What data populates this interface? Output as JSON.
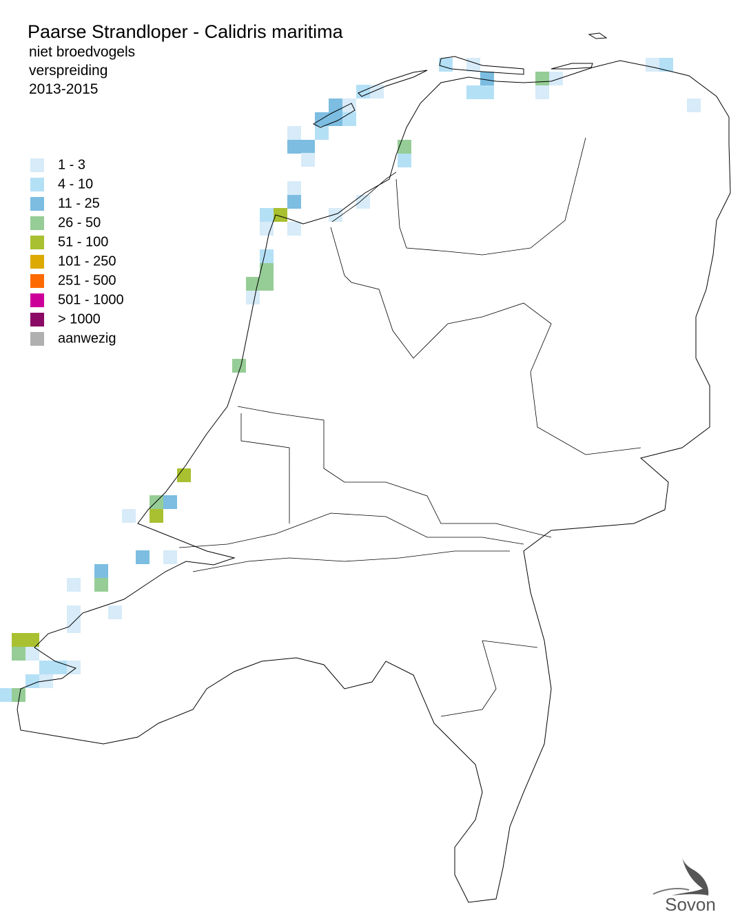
{
  "header": {
    "title": "Paarse Strandloper - Calidris maritima",
    "subtitle": [
      "niet broedvogels",
      "verspreiding",
      "2013-2015"
    ]
  },
  "legend": [
    {
      "label": "1 - 3",
      "color": "#d7ebf8"
    },
    {
      "label": "4 - 10",
      "color": "#b4e0f6"
    },
    {
      "label": "11 - 25",
      "color": "#7cbde1"
    },
    {
      "label": "26 - 50",
      "color": "#96cd96"
    },
    {
      "label": "51 - 100",
      "color": "#a9c030"
    },
    {
      "label": "101 - 250",
      "color": "#dcaa00"
    },
    {
      "label": "251 - 500",
      "color": "#ff6a00"
    },
    {
      "label": "501 - 1000",
      "color": "#cc0099"
    },
    {
      "label": "> 1000",
      "color": "#8a0a66"
    },
    {
      "label": "aanwezig",
      "color": "#b0b0b0"
    }
  ],
  "logo": "Sovon"
}
